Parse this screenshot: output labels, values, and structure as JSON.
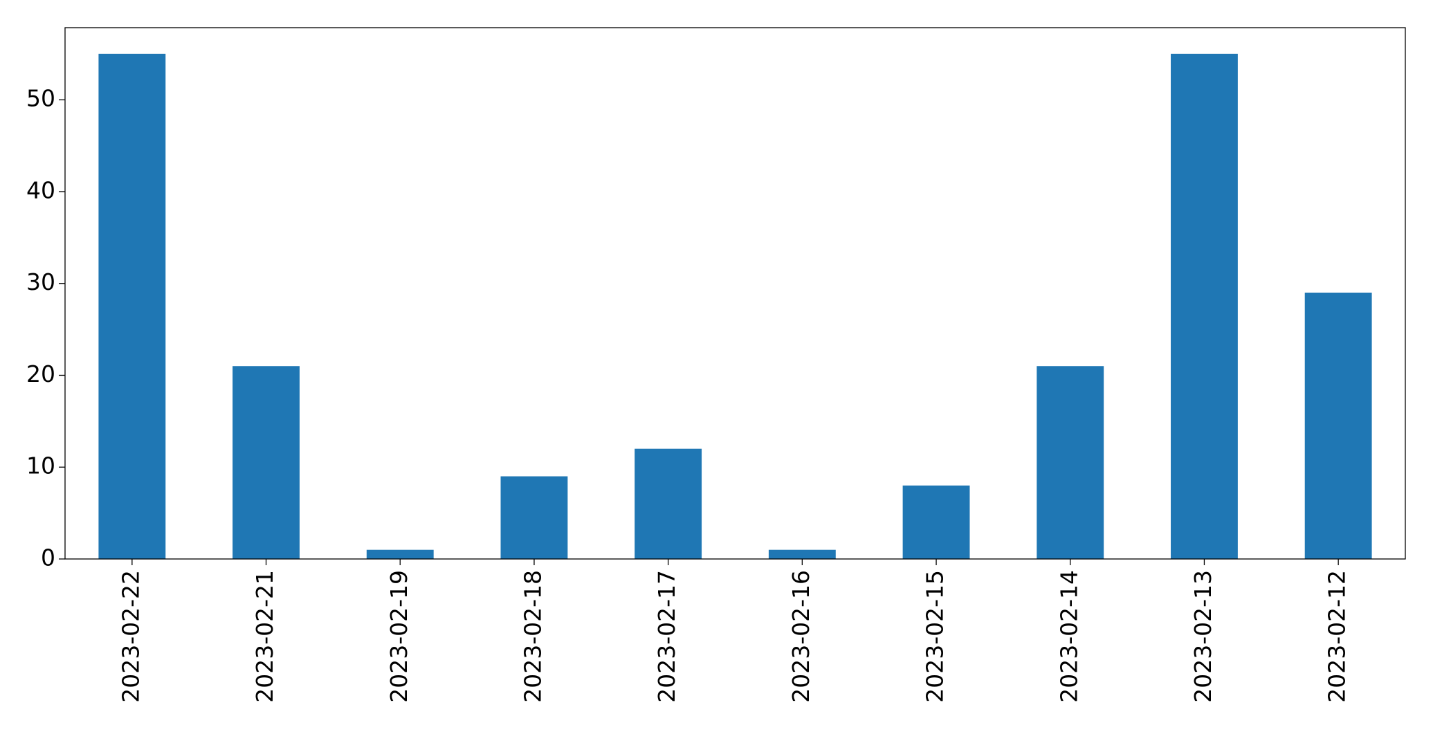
{
  "chart_data": {
    "type": "bar",
    "categories": [
      "2023-02-22",
      "2023-02-21",
      "2023-02-19",
      "2023-02-18",
      "2023-02-17",
      "2023-02-16",
      "2023-02-15",
      "2023-02-14",
      "2023-02-13",
      "2023-02-12"
    ],
    "values": [
      55,
      21,
      1,
      9,
      12,
      1,
      8,
      21,
      55,
      29
    ],
    "color": "#1f77b4",
    "ylim": [
      0,
      57.85
    ],
    "yticks": [
      0,
      10,
      20,
      30,
      40,
      50
    ],
    "grid": false
  }
}
